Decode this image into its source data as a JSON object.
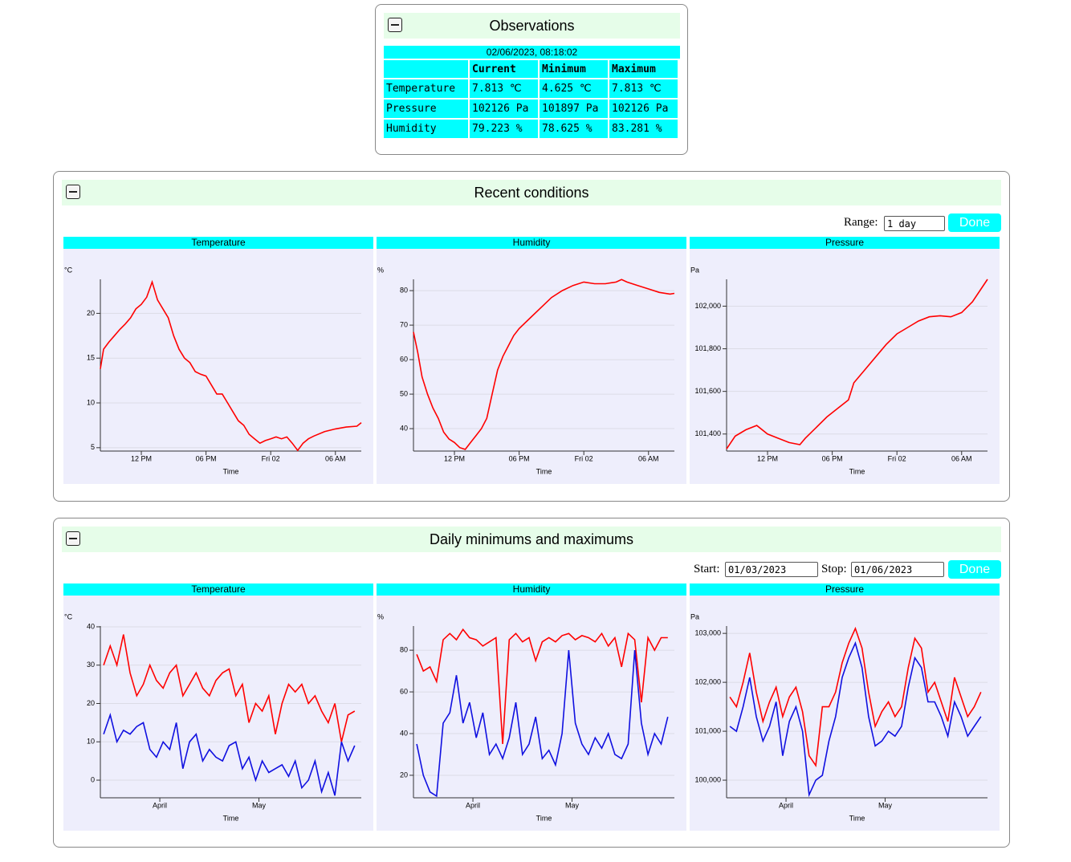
{
  "observations": {
    "title": "Observations",
    "timestamp": "02/06/2023, 08:18:02",
    "columns": [
      "Current",
      "Minimum",
      "Maximum"
    ],
    "rows": [
      {
        "label": "Temperature",
        "cells": [
          "7.813 ℃",
          "4.625 ℃",
          "7.813 ℃"
        ]
      },
      {
        "label": "Pressure",
        "cells": [
          "102126 Pa",
          "101897 Pa",
          "102126 Pa"
        ]
      },
      {
        "label": "Humidity",
        "cells": [
          "79.223 %",
          "78.625 %",
          "83.281 %"
        ]
      }
    ]
  },
  "recent": {
    "title": "Recent conditions",
    "range_label": "Range:",
    "range_value": "1 day",
    "button": "Done"
  },
  "daily": {
    "title": "Daily minimums and maximums",
    "start_label": "Start:",
    "start_value": "01/03/2023",
    "stop_label": "Stop:",
    "stop_value": "01/06/2023",
    "button": "Done"
  },
  "chart_data": [
    {
      "type": "line",
      "title": "Temperature",
      "y_label": "°C",
      "x_label": "Time",
      "color": "#ff0000",
      "grid": true,
      "x": [
        8.2,
        8.5,
        9,
        9.5,
        10,
        10.5,
        11,
        11.5,
        12,
        12.5,
        13,
        13.5,
        14,
        14.5,
        15,
        15.5,
        16,
        16.5,
        17,
        17.5,
        18,
        18.5,
        19,
        19.5,
        20,
        20.5,
        21,
        21.5,
        22,
        22.5,
        23,
        23.5,
        24,
        24.5,
        25,
        25.5,
        26,
        26.5,
        27,
        27.5,
        28,
        29,
        30,
        31,
        32,
        32.4
      ],
      "values": [
        13.8,
        16,
        16.8,
        17.5,
        18.2,
        18.8,
        19.5,
        20.5,
        21,
        21.8,
        23.5,
        21.5,
        20.5,
        19.5,
        17.5,
        16,
        15,
        14.5,
        13.5,
        13.2,
        13,
        12,
        11,
        11,
        10,
        9,
        8,
        7.5,
        6.5,
        6,
        5.5,
        5.8,
        6,
        6.2,
        6,
        6.2,
        5.5,
        4.7,
        5.5,
        6,
        6.3,
        6.8,
        7.1,
        7.3,
        7.4,
        7.8
      ],
      "xlim": [
        8.2,
        32.4
      ],
      "xticks": [
        {
          "value": 12,
          "label": "12 PM"
        },
        {
          "value": 18,
          "label": "06 PM"
        },
        {
          "value": 24,
          "label": "Fri 02"
        },
        {
          "value": 30,
          "label": "06 AM"
        }
      ],
      "ylim": [
        4.625,
        23.8
      ],
      "yticks": [
        5,
        10,
        15,
        20
      ]
    },
    {
      "type": "line",
      "title": "Humidity",
      "y_label": "%",
      "x_label": "Time",
      "color": "#ff0000",
      "grid": true,
      "x": [
        8.2,
        8.6,
        9,
        9.5,
        10,
        10.5,
        11,
        11.5,
        12,
        12.5,
        13,
        13.5,
        14,
        14.5,
        15,
        15.5,
        16,
        16.5,
        17,
        17.5,
        18,
        19,
        20,
        21,
        22,
        23,
        24,
        25,
        26,
        27,
        27.5,
        28,
        29,
        30,
        31,
        32,
        32.4
      ],
      "values": [
        68,
        62,
        55,
        50,
        46,
        43,
        39,
        37,
        36,
        34.5,
        34,
        36,
        38,
        40,
        43,
        50,
        57,
        61,
        64,
        67,
        69,
        72,
        75,
        78,
        80,
        81.5,
        82.5,
        82,
        82,
        82.5,
        83.2,
        82.5,
        81.5,
        80.5,
        79.5,
        79,
        79.2
      ],
      "xlim": [
        8.2,
        32.4
      ],
      "xticks": [
        {
          "value": 12,
          "label": "12 PM"
        },
        {
          "value": 18,
          "label": "06 PM"
        },
        {
          "value": 24,
          "label": "Fri 02"
        },
        {
          "value": 30,
          "label": "06 AM"
        }
      ],
      "ylim": [
        33.5,
        83.281
      ],
      "yticks": [
        40,
        50,
        60,
        70,
        80
      ]
    },
    {
      "type": "line",
      "title": "Pressure",
      "y_label": "Pa",
      "x_label": "Time",
      "color": "#ff0000",
      "grid": true,
      "x": [
        8.2,
        9,
        10,
        11,
        12,
        13,
        14,
        15,
        15.5,
        16.5,
        17.5,
        18.5,
        19.5,
        20,
        21,
        22,
        23,
        24,
        25,
        26,
        27,
        28,
        29,
        30,
        31,
        32.4
      ],
      "values": [
        101330,
        101390,
        101420,
        101440,
        101400,
        101380,
        101360,
        101350,
        101380,
        101430,
        101480,
        101520,
        101560,
        101640,
        101700,
        101760,
        101820,
        101870,
        101900,
        101930,
        101950,
        101955,
        101950,
        101970,
        102020,
        102126
      ],
      "xlim": [
        8.2,
        32.4
      ],
      "xticks": [
        {
          "value": 12,
          "label": "12 PM"
        },
        {
          "value": 18,
          "label": "06 PM"
        },
        {
          "value": 24,
          "label": "Fri 02"
        },
        {
          "value": 30,
          "label": "06 AM"
        }
      ],
      "ylim": [
        101320,
        102126
      ],
      "yticks": [
        {
          "value": 101400,
          "label": "101,400"
        },
        {
          "value": 101600,
          "label": "101,600"
        },
        {
          "value": 101800,
          "label": "101,800"
        },
        {
          "value": 102000,
          "label": "102,000"
        }
      ]
    },
    {
      "type": "line",
      "title": "Temperature",
      "y_label": "°C",
      "x_label": "Time",
      "grid": true,
      "x": [
        74,
        76,
        78,
        80,
        82,
        84,
        86,
        88,
        90,
        92,
        94,
        96,
        98,
        100,
        102,
        104,
        106,
        108,
        110,
        112,
        114,
        116,
        118,
        120,
        122,
        124,
        126,
        128,
        130,
        132,
        134,
        136,
        138,
        140,
        142,
        144,
        146,
        148,
        150
      ],
      "series": [
        {
          "color": "#ff0000",
          "values": [
            30,
            35,
            30,
            38,
            28,
            22,
            25,
            30,
            26,
            24,
            28,
            30,
            22,
            25,
            28,
            24,
            22,
            26,
            28,
            29,
            22,
            25,
            15,
            20,
            18,
            22,
            12,
            20,
            25,
            23,
            25,
            20,
            22,
            18,
            15,
            20,
            10,
            17,
            18
          ]
        },
        {
          "color": "#1010e0",
          "values": [
            12,
            17,
            10,
            13,
            12,
            14,
            15,
            8,
            6,
            10,
            8,
            15,
            3,
            10,
            12,
            5,
            8,
            6,
            5,
            9,
            10,
            3,
            6,
            0,
            5,
            2,
            3,
            4,
            1,
            5,
            -2,
            0,
            5,
            -3,
            2,
            -4,
            10,
            5,
            9
          ]
        }
      ],
      "xlim": [
        73,
        152
      ],
      "xticks": [
        {
          "value": 91,
          "label": "April"
        },
        {
          "value": 121,
          "label": "May"
        }
      ],
      "ylim": [
        -4.6,
        40.2
      ],
      "yticks": [
        0,
        10,
        20,
        30,
        40
      ]
    },
    {
      "type": "line",
      "title": "Humidity",
      "y_label": "%",
      "x_label": "Time",
      "grid": true,
      "x": [
        74,
        76,
        78,
        80,
        82,
        84,
        86,
        88,
        90,
        92,
        94,
        96,
        98,
        100,
        102,
        104,
        106,
        108,
        110,
        112,
        114,
        116,
        118,
        120,
        122,
        124,
        126,
        128,
        130,
        132,
        134,
        136,
        138,
        140,
        142,
        144,
        146,
        148,
        150
      ],
      "series": [
        {
          "color": "#ff0000",
          "values": [
            78,
            70,
            72,
            65,
            85,
            88,
            85,
            90,
            86,
            85,
            82,
            84,
            86,
            35,
            85,
            88,
            84,
            86,
            75,
            84,
            86,
            84,
            87,
            88,
            85,
            87,
            86,
            84,
            88,
            82,
            86,
            72,
            88,
            85,
            55,
            86,
            80,
            86,
            86
          ]
        },
        {
          "color": "#1010e0",
          "values": [
            35,
            20,
            12,
            10,
            45,
            50,
            68,
            45,
            55,
            38,
            50,
            30,
            35,
            28,
            38,
            55,
            30,
            35,
            48,
            28,
            32,
            25,
            40,
            80,
            45,
            35,
            30,
            38,
            33,
            40,
            30,
            28,
            35,
            80,
            45,
            30,
            40,
            35,
            48
          ]
        }
      ],
      "xlim": [
        73,
        152
      ],
      "xticks": [
        {
          "value": 91,
          "label": "April"
        },
        {
          "value": 121,
          "label": "May"
        }
      ],
      "ylim": [
        9.2,
        91.6
      ],
      "yticks": [
        20,
        40,
        60,
        80
      ]
    },
    {
      "type": "line",
      "title": "Pressure",
      "y_label": "Pa",
      "x_label": "Time",
      "grid": true,
      "x": [
        74,
        76,
        78,
        80,
        82,
        84,
        86,
        88,
        90,
        92,
        94,
        96,
        98,
        100,
        102,
        104,
        106,
        108,
        110,
        112,
        114,
        116,
        118,
        120,
        122,
        124,
        126,
        128,
        130,
        132,
        134,
        136,
        138,
        140,
        142,
        144,
        146,
        148,
        150
      ],
      "series": [
        {
          "color": "#ff0000",
          "values": [
            101700,
            101500,
            102000,
            102600,
            101800,
            101200,
            101600,
            101900,
            101300,
            101700,
            101900,
            101400,
            100500,
            100300,
            101500,
            101500,
            101800,
            102400,
            102800,
            103100,
            102700,
            101800,
            101100,
            101400,
            101600,
            101300,
            101500,
            102300,
            102900,
            102700,
            101800,
            102000,
            101600,
            101200,
            102100,
            101700,
            101300,
            101500,
            101800
          ]
        },
        {
          "color": "#1010e0",
          "values": [
            101100,
            101000,
            101500,
            102100,
            101300,
            100800,
            101100,
            101600,
            100500,
            101200,
            101500,
            101000,
            99700,
            100000,
            100100,
            100800,
            101300,
            102100,
            102500,
            102800,
            102300,
            101300,
            100700,
            100800,
            101000,
            100900,
            101100,
            101900,
            102500,
            102300,
            101600,
            101600,
            101300,
            100900,
            101600,
            101300,
            100900,
            101100,
            101300
          ]
        }
      ],
      "xlim": [
        73,
        152
      ],
      "xticks": [
        {
          "value": 91,
          "label": "April"
        },
        {
          "value": 121,
          "label": "May"
        }
      ],
      "ylim": [
        99640,
        103150
      ],
      "yticks": [
        {
          "value": 100000,
          "label": "100,000"
        },
        {
          "value": 101000,
          "label": "101,000"
        },
        {
          "value": 102000,
          "label": "102,000"
        },
        {
          "value": 103000,
          "label": "103,000"
        }
      ]
    }
  ]
}
